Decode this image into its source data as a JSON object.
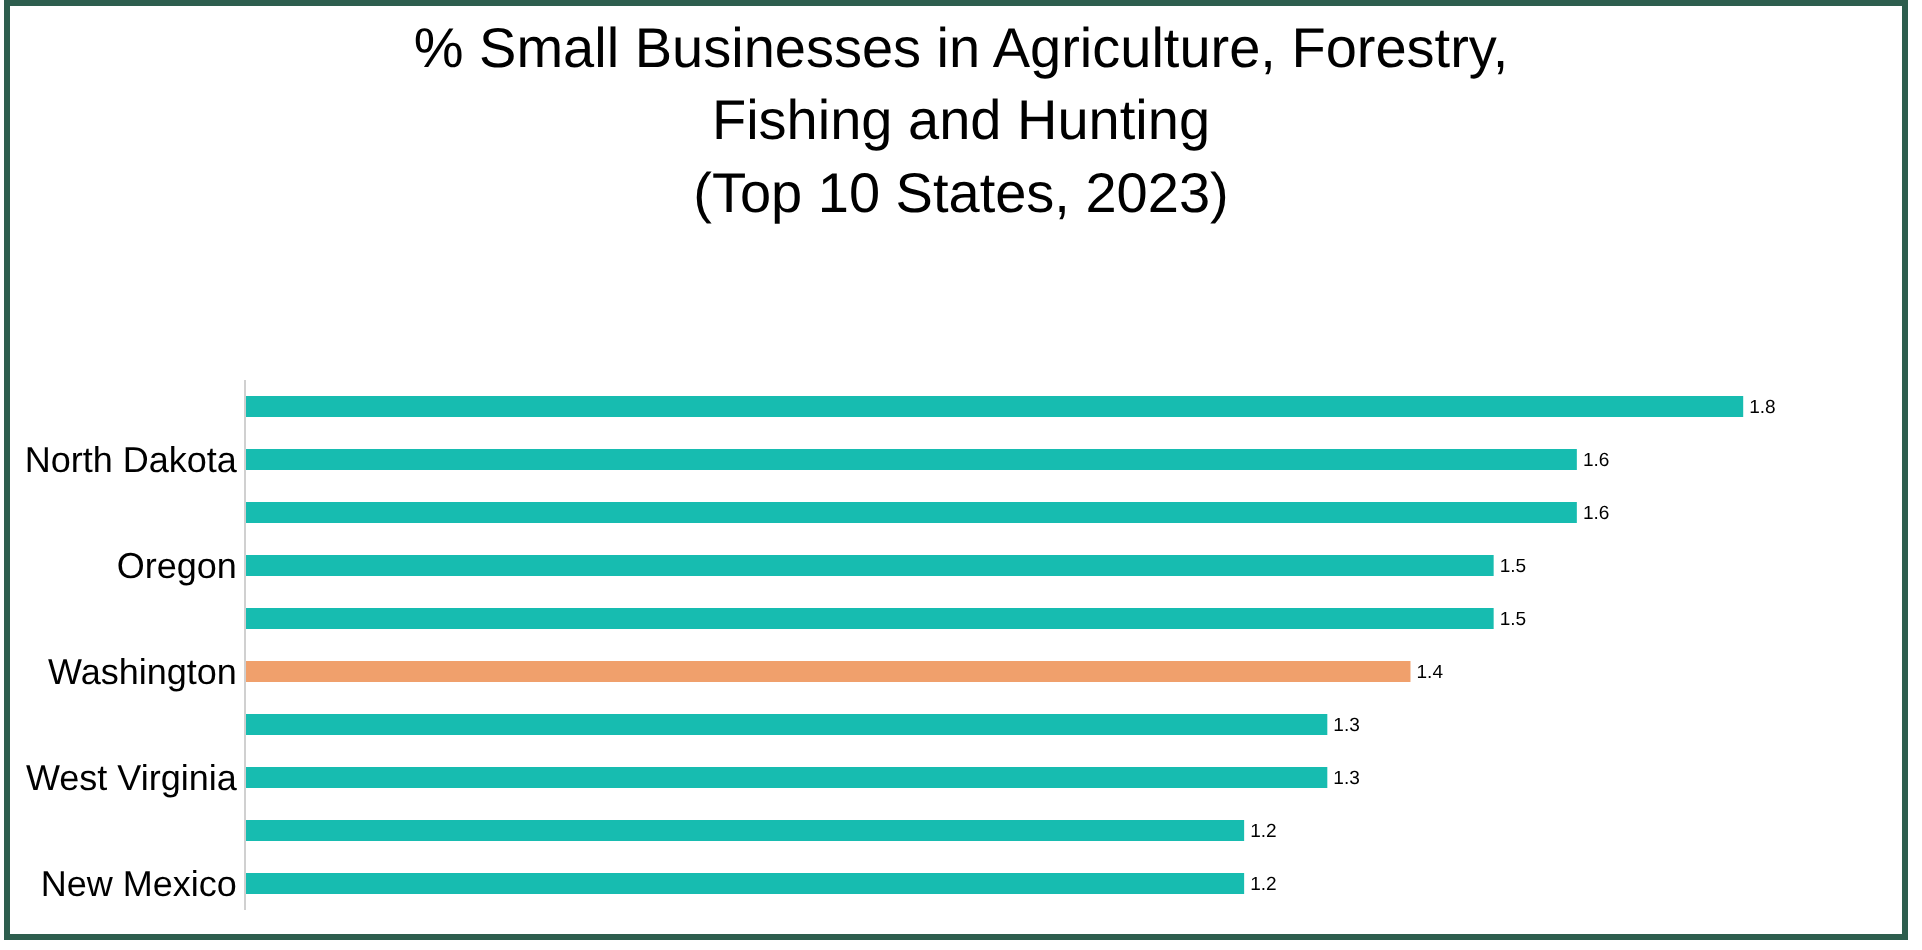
{
  "chart_data": {
    "type": "bar",
    "orientation": "horizontal",
    "title": "% Small Businesses in Agriculture, Forestry,\nFishing and Hunting\n(Top 10 States, 2023)",
    "categories": [
      null,
      "North Dakota",
      null,
      "Oregon",
      null,
      "Washington",
      null,
      "West Virginia",
      null,
      "New Mexico"
    ],
    "values": [
      1.8,
      1.6,
      1.6,
      1.5,
      1.5,
      1.4,
      1.3,
      1.3,
      1.2,
      1.2
    ],
    "colors": [
      "#17bcb0",
      "#17bcb0",
      "#17bcb0",
      "#17bcb0",
      "#17bcb0",
      "#f0a06c",
      "#17bcb0",
      "#17bcb0",
      "#17bcb0",
      "#17bcb0"
    ],
    "tick_labels": "y",
    "data_labels": true
  }
}
